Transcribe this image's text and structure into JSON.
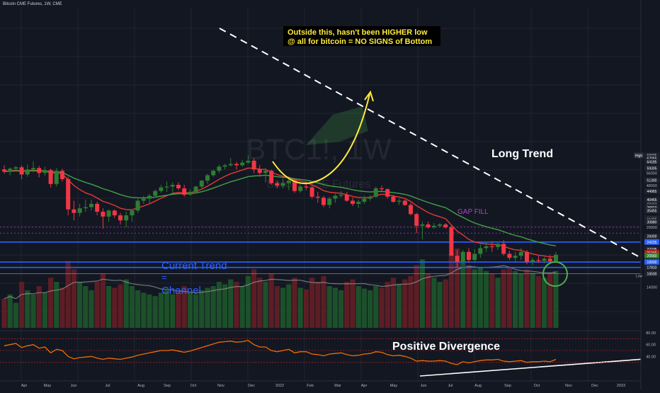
{
  "header": {
    "symbol_line": "Bitcoin CME Futures, 1W, CME"
  },
  "watermark": {
    "ticker": "BTC1!, 1W",
    "name": "Bitcoin CME Futures"
  },
  "colors": {
    "background": "#131722",
    "grid": "#1f2430",
    "up": "#26a69a",
    "up_body": "#2e7d32",
    "down": "#f23645",
    "ema_fast": "#e53935",
    "ema_slow": "#43a047",
    "volume_up": "#1e5a2c",
    "volume_down": "#6b1e26",
    "volume_ma": "#9e9e9e",
    "channel": "#2962ff",
    "gap_fill": "#9c27b0",
    "rsi": "#ef6c00",
    "annotation_yellow": "#ffeb3b",
    "white": "#ffffff"
  },
  "chart_data": {
    "type": "candlestick",
    "title": "Bitcoin CME Futures, 1W, CME",
    "interval": "1W",
    "y_axis_ticks": [
      69325,
      67055,
      64185,
      59305,
      56000,
      51300,
      48000,
      44965,
      40455,
      39000,
      36810,
      35455,
      32355,
      31775,
      30880,
      29000,
      26000,
      24235,
      22235,
      21245,
      20560,
      19000,
      17810,
      16500,
      14000
    ],
    "x_axis_labels": [
      "Apr",
      "May",
      "Jun",
      "Jul",
      "Aug",
      "Sep",
      "Oct",
      "Nov",
      "Dec",
      "2022",
      "Feb",
      "Mar",
      "Apr",
      "May",
      "Jun",
      "Jul",
      "Aug",
      "Sep",
      "Oct",
      "Nov",
      "Dec",
      "2023"
    ],
    "price_badges": [
      "High",
      "69325",
      "67055",
      "64185",
      "59305",
      "51300",
      "44965",
      "40455",
      "36810",
      "35455",
      "32355",
      "31775",
      "30880",
      "26000",
      "24235",
      "22235",
      "21245",
      "20560",
      "19000",
      "17810",
      "16500"
    ],
    "low_label": "Low",
    "candles": [
      {
        "o": 58500,
        "h": 61500,
        "l": 55500,
        "c": 57000
      },
      {
        "o": 57000,
        "h": 60000,
        "l": 54500,
        "c": 59000
      },
      {
        "o": 59000,
        "h": 61000,
        "l": 57000,
        "c": 60000
      },
      {
        "o": 60000,
        "h": 61500,
        "l": 52000,
        "c": 55000
      },
      {
        "o": 55000,
        "h": 62000,
        "l": 53500,
        "c": 58500
      },
      {
        "o": 58500,
        "h": 64500,
        "l": 56500,
        "c": 59500
      },
      {
        "o": 59500,
        "h": 61000,
        "l": 53000,
        "c": 56000
      },
      {
        "o": 56000,
        "h": 60500,
        "l": 54000,
        "c": 58000
      },
      {
        "o": 58000,
        "h": 59000,
        "l": 47000,
        "c": 49000
      },
      {
        "o": 49000,
        "h": 59500,
        "l": 47500,
        "c": 57500
      },
      {
        "o": 57500,
        "h": 59000,
        "l": 50500,
        "c": 52000
      },
      {
        "o": 52000,
        "h": 53500,
        "l": 33500,
        "c": 36000
      },
      {
        "o": 36000,
        "h": 40000,
        "l": 31500,
        "c": 34500
      },
      {
        "o": 34500,
        "h": 38500,
        "l": 33000,
        "c": 36500
      },
      {
        "o": 36500,
        "h": 40500,
        "l": 35000,
        "c": 37000
      },
      {
        "o": 37000,
        "h": 40500,
        "l": 35500,
        "c": 38500
      },
      {
        "o": 38500,
        "h": 39500,
        "l": 33500,
        "c": 35000
      },
      {
        "o": 35000,
        "h": 36500,
        "l": 28500,
        "c": 33000
      },
      {
        "o": 33000,
        "h": 36000,
        "l": 31000,
        "c": 35500
      },
      {
        "o": 35500,
        "h": 36000,
        "l": 32500,
        "c": 33500
      },
      {
        "o": 33500,
        "h": 34500,
        "l": 30000,
        "c": 31500
      },
      {
        "o": 31500,
        "h": 35000,
        "l": 29000,
        "c": 33500
      },
      {
        "o": 33500,
        "h": 36000,
        "l": 31000,
        "c": 35500
      },
      {
        "o": 35500,
        "h": 41000,
        "l": 34500,
        "c": 40000
      },
      {
        "o": 40000,
        "h": 42500,
        "l": 38500,
        "c": 41000
      },
      {
        "o": 41000,
        "h": 43500,
        "l": 39000,
        "c": 42500
      },
      {
        "o": 42500,
        "h": 46000,
        "l": 41500,
        "c": 45000
      },
      {
        "o": 45000,
        "h": 48500,
        "l": 44000,
        "c": 47000
      },
      {
        "o": 47000,
        "h": 50500,
        "l": 44500,
        "c": 47500
      },
      {
        "o": 47500,
        "h": 50000,
        "l": 44000,
        "c": 48500
      },
      {
        "o": 48500,
        "h": 50000,
        "l": 45500,
        "c": 46500
      },
      {
        "o": 46500,
        "h": 48500,
        "l": 42000,
        "c": 43000
      },
      {
        "o": 43000,
        "h": 46000,
        "l": 42500,
        "c": 44500
      },
      {
        "o": 44500,
        "h": 48000,
        "l": 43500,
        "c": 47500
      },
      {
        "o": 47500,
        "h": 51500,
        "l": 46500,
        "c": 51000
      },
      {
        "o": 51000,
        "h": 55500,
        "l": 49000,
        "c": 54500
      },
      {
        "o": 54500,
        "h": 58500,
        "l": 53500,
        "c": 57500
      },
      {
        "o": 57500,
        "h": 62000,
        "l": 56000,
        "c": 60500
      },
      {
        "o": 60500,
        "h": 62500,
        "l": 58500,
        "c": 61500
      },
      {
        "o": 61500,
        "h": 67000,
        "l": 60500,
        "c": 62500
      },
      {
        "o": 62500,
        "h": 64000,
        "l": 58500,
        "c": 61500
      },
      {
        "o": 61500,
        "h": 65500,
        "l": 60500,
        "c": 63500
      },
      {
        "o": 63500,
        "h": 69325,
        "l": 62500,
        "c": 65000
      },
      {
        "o": 65000,
        "h": 67000,
        "l": 56000,
        "c": 58500
      },
      {
        "o": 58500,
        "h": 61500,
        "l": 53500,
        "c": 56000
      },
      {
        "o": 56000,
        "h": 59500,
        "l": 50000,
        "c": 57500
      },
      {
        "o": 57500,
        "h": 58500,
        "l": 48500,
        "c": 49500
      },
      {
        "o": 49500,
        "h": 51000,
        "l": 46500,
        "c": 48000
      },
      {
        "o": 48000,
        "h": 52500,
        "l": 46500,
        "c": 49500
      },
      {
        "o": 49500,
        "h": 52000,
        "l": 45500,
        "c": 51000
      },
      {
        "o": 51000,
        "h": 52500,
        "l": 44000,
        "c": 45000
      },
      {
        "o": 45000,
        "h": 48500,
        "l": 44000,
        "c": 47500
      },
      {
        "o": 47500,
        "h": 50000,
        "l": 45500,
        "c": 47000
      },
      {
        "o": 47000,
        "h": 48000,
        "l": 41000,
        "c": 42000
      },
      {
        "o": 42000,
        "h": 44500,
        "l": 39000,
        "c": 41500
      },
      {
        "o": 41500,
        "h": 42500,
        "l": 37000,
        "c": 38000
      },
      {
        "o": 38000,
        "h": 42000,
        "l": 36500,
        "c": 41000
      },
      {
        "o": 41000,
        "h": 43500,
        "l": 39000,
        "c": 42500
      },
      {
        "o": 42500,
        "h": 45000,
        "l": 41500,
        "c": 43000
      },
      {
        "o": 43000,
        "h": 44500,
        "l": 39500,
        "c": 40000
      },
      {
        "o": 40000,
        "h": 41500,
        "l": 37500,
        "c": 38500
      },
      {
        "o": 38500,
        "h": 40500,
        "l": 36500,
        "c": 39500
      },
      {
        "o": 39500,
        "h": 42500,
        "l": 38500,
        "c": 41000
      },
      {
        "o": 41000,
        "h": 43000,
        "l": 40000,
        "c": 42000
      },
      {
        "o": 42000,
        "h": 47500,
        "l": 41500,
        "c": 46500
      },
      {
        "o": 46500,
        "h": 48000,
        "l": 44500,
        "c": 46000
      },
      {
        "o": 46000,
        "h": 46500,
        "l": 41000,
        "c": 42000
      },
      {
        "o": 42000,
        "h": 43000,
        "l": 39000,
        "c": 39500
      },
      {
        "o": 39500,
        "h": 41000,
        "l": 38000,
        "c": 40000
      },
      {
        "o": 40000,
        "h": 40500,
        "l": 37500,
        "c": 38000
      },
      {
        "o": 38000,
        "h": 39000,
        "l": 33500,
        "c": 34000
      },
      {
        "o": 34000,
        "h": 34500,
        "l": 27000,
        "c": 29500
      },
      {
        "o": 29500,
        "h": 31000,
        "l": 25000,
        "c": 30000
      },
      {
        "o": 30000,
        "h": 31000,
        "l": 28500,
        "c": 29000
      },
      {
        "o": 29000,
        "h": 30500,
        "l": 28500,
        "c": 29500
      },
      {
        "o": 29500,
        "h": 30500,
        "l": 29000,
        "c": 30000
      },
      {
        "o": 30000,
        "h": 30500,
        "l": 28500,
        "c": 29000
      },
      {
        "o": 29000,
        "h": 29500,
        "l": 21000,
        "c": 20500
      },
      {
        "o": 20500,
        "h": 22000,
        "l": 17810,
        "c": 19000
      },
      {
        "o": 19000,
        "h": 22000,
        "l": 18500,
        "c": 21500
      },
      {
        "o": 21500,
        "h": 22500,
        "l": 18800,
        "c": 19500
      },
      {
        "o": 19500,
        "h": 22200,
        "l": 19000,
        "c": 21000
      },
      {
        "o": 21000,
        "h": 23500,
        "l": 20000,
        "c": 22500
      },
      {
        "o": 22500,
        "h": 24200,
        "l": 21500,
        "c": 23000
      },
      {
        "o": 23000,
        "h": 24500,
        "l": 21500,
        "c": 22800
      },
      {
        "o": 22800,
        "h": 24400,
        "l": 22000,
        "c": 23700
      },
      {
        "o": 23700,
        "h": 24800,
        "l": 20500,
        "c": 21000
      },
      {
        "o": 21000,
        "h": 21800,
        "l": 19500,
        "c": 20000
      },
      {
        "o": 20000,
        "h": 21500,
        "l": 19000,
        "c": 20500
      },
      {
        "o": 20500,
        "h": 22500,
        "l": 19500,
        "c": 21500
      },
      {
        "o": 21500,
        "h": 22000,
        "l": 18500,
        "c": 19000
      },
      {
        "o": 19000,
        "h": 20000,
        "l": 18300,
        "c": 19500
      },
      {
        "o": 19500,
        "h": 20500,
        "l": 18800,
        "c": 19300
      },
      {
        "o": 19300,
        "h": 20200,
        "l": 18700,
        "c": 19800
      },
      {
        "o": 19800,
        "h": 20800,
        "l": 18800,
        "c": 19200
      },
      {
        "o": 19200,
        "h": 21500,
        "l": 19000,
        "c": 20800
      }
    ],
    "rsi": {
      "y_ticks": [
        80,
        60,
        40
      ],
      "bands": [
        70,
        50,
        30
      ],
      "values": [
        58,
        60,
        62,
        55,
        58,
        60,
        54,
        56,
        46,
        52,
        50,
        40,
        36,
        38,
        39,
        40,
        37,
        35,
        37,
        36,
        35,
        37,
        39,
        42,
        44,
        46,
        48,
        50,
        50,
        51,
        49,
        47,
        49,
        52,
        55,
        58,
        61,
        64,
        65,
        66,
        64,
        65,
        67,
        60,
        56,
        56,
        50,
        48,
        50,
        52,
        46,
        48,
        48,
        44,
        43,
        41,
        44,
        45,
        46,
        43,
        41,
        42,
        44,
        45,
        48,
        47,
        43,
        41,
        42,
        40,
        37,
        32,
        33,
        32,
        32,
        33,
        32,
        28,
        26,
        31,
        29,
        31,
        33,
        34,
        34,
        35,
        32,
        31,
        32,
        33,
        30,
        31,
        31,
        32,
        31,
        35
      ]
    },
    "volume_height_fraction": [
      0.35,
      0.4,
      0.3,
      0.55,
      0.45,
      0.4,
      0.5,
      0.42,
      0.6,
      0.55,
      0.48,
      0.8,
      0.7,
      0.55,
      0.5,
      0.45,
      0.55,
      0.65,
      0.5,
      0.48,
      0.52,
      0.58,
      0.5,
      0.45,
      0.42,
      0.4,
      0.38,
      0.42,
      0.45,
      0.4,
      0.44,
      0.5,
      0.42,
      0.4,
      0.45,
      0.48,
      0.5,
      0.55,
      0.52,
      0.58,
      0.55,
      0.5,
      0.62,
      0.7,
      0.6,
      0.55,
      0.65,
      0.5,
      0.48,
      0.52,
      0.6,
      0.48,
      0.46,
      0.6,
      0.55,
      0.62,
      0.5,
      0.48,
      0.45,
      0.55,
      0.58,
      0.5,
      0.47,
      0.45,
      0.5,
      0.48,
      0.55,
      0.6,
      0.52,
      0.58,
      0.62,
      0.75,
      0.82,
      0.65,
      0.6,
      0.55,
      0.58,
      0.9,
      0.95,
      0.8,
      0.75,
      0.7,
      0.72,
      0.68,
      0.65,
      0.6,
      0.7,
      0.72,
      0.68,
      0.65,
      0.7,
      0.66,
      0.62,
      0.6,
      0.65,
      0.68
    ]
  },
  "annotations": {
    "callout_line1": "Outside this, hasn't been HIGHER low",
    "callout_line2": "@ all for bitcoin = NO SIGNS of Bottom",
    "long_trend": "Long Trend",
    "gap_fill": "GAP FILL",
    "current_trend_line1": "Current Trend",
    "current_trend_line2": "=",
    "current_trend_line3": "Channel",
    "positive_divergence": "Positive Divergence"
  },
  "levels": {
    "channel_top": 24235,
    "channel_mid": 19000,
    "channel_bottom": 17810,
    "gap_fill_upper": 29000,
    "gap_fill_lower": 27000
  }
}
